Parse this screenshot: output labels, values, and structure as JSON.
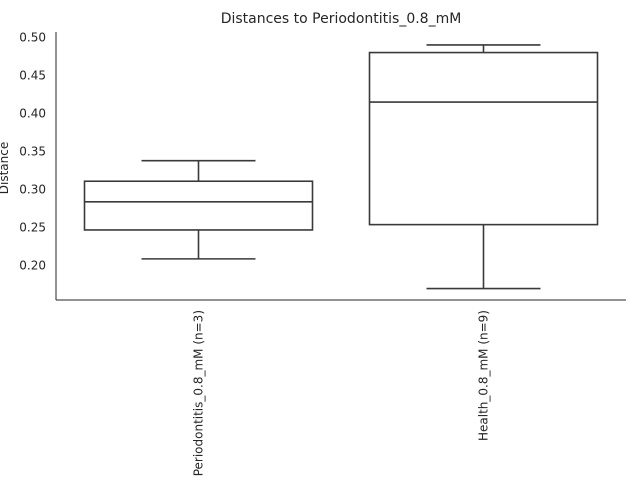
{
  "chart_data": {
    "type": "box",
    "title": "Distances to Periodontitis_0.8_mM",
    "xlabel": "",
    "ylabel": "Distance",
    "ylim": [
      0.155,
      0.507
    ],
    "yticks": [
      "0.20",
      "0.25",
      "0.30",
      "0.35",
      "0.40",
      "0.45",
      "0.50"
    ],
    "grid": false,
    "categories": [
      "Periodontitis_0.8_mM (n=3)",
      "Health_0.8_mM (n=9)"
    ],
    "boxes": [
      {
        "category": "Periodontitis_0.8_mM (n=3)",
        "whisker_low": 0.209,
        "q1": 0.247,
        "median": 0.284,
        "q3": 0.311,
        "whisker_high": 0.338
      },
      {
        "category": "Health_0.8_mM (n=9)",
        "whisker_low": 0.17,
        "q1": 0.254,
        "median": 0.415,
        "q3": 0.48,
        "whisker_high": 0.49
      }
    ],
    "line_color": "#3a3a3a"
  }
}
